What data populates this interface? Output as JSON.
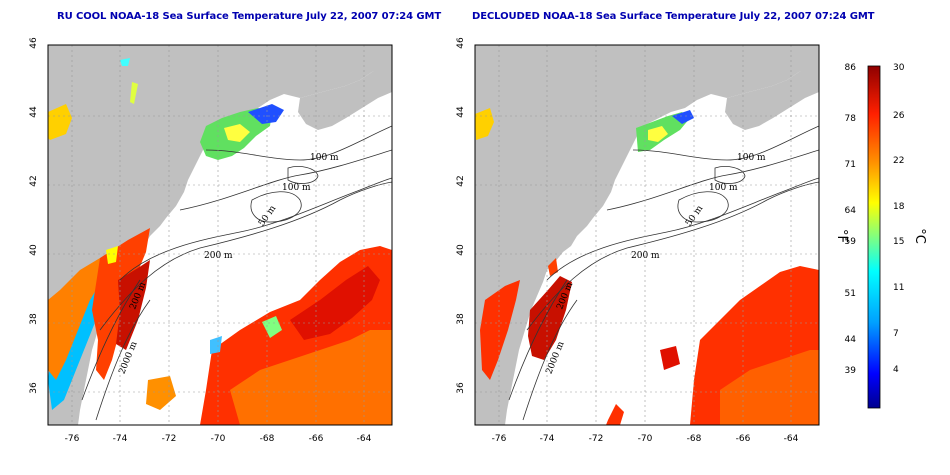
{
  "titles": {
    "left": "RU COOL NOAA-18 Sea Surface Temperature July 22, 2007 07:24 GMT",
    "right": "DECLOUDED NOAA-18 Sea Surface Temperature July 22, 2007 07:24 GMT"
  },
  "axes": {
    "lon_ticks": [
      "-76",
      "-74",
      "-72",
      "-70",
      "-68",
      "-66",
      "-64"
    ],
    "lat_ticks": [
      "46",
      "44",
      "42",
      "40",
      "38",
      "36"
    ]
  },
  "isobath_labels": [
    "100 m",
    "100 m",
    "50 m",
    "200 m",
    "200 m",
    "2000 m"
  ],
  "colorbar": {
    "fahrenheit_ticks": [
      "86",
      "78",
      "71",
      "64",
      "59",
      "51",
      "44",
      "39"
    ],
    "celsius_ticks": [
      "30",
      "26",
      "22",
      "18",
      "15",
      "11",
      "7",
      "4"
    ],
    "unit_f": "°F",
    "unit_c": "°C",
    "colors": [
      "#00008f",
      "#0000ff",
      "#00a0ff",
      "#00ffff",
      "#80ff80",
      "#ffff00",
      "#ff9000",
      "#ff2000",
      "#8f0000"
    ]
  },
  "colors": {
    "land": "#c0c0c0",
    "ocean": "#ffffff",
    "grid": "#aaaaaa",
    "title": "#0000b0"
  }
}
